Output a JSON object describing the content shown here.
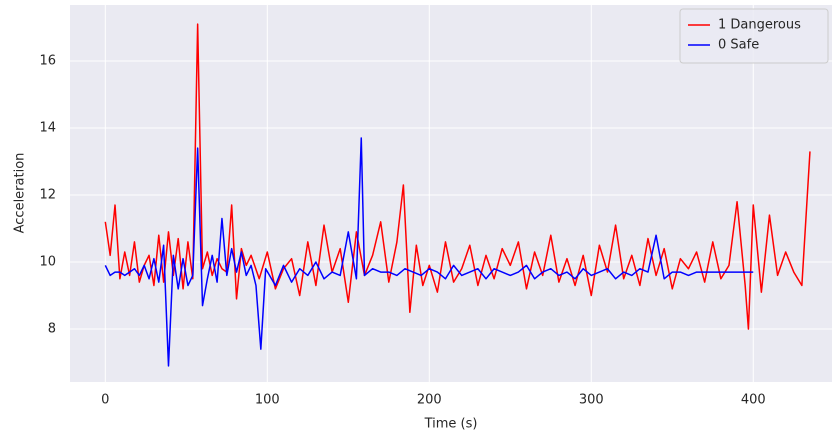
{
  "chart_data": {
    "type": "line",
    "x_label": "Time (s)",
    "y_label": "Acceleration",
    "xlim": [
      -21.8,
      448.6
    ],
    "ylim": [
      6.42,
      17.67
    ],
    "xticks": [
      0,
      100,
      200,
      300,
      400
    ],
    "yticks": [
      8,
      10,
      12,
      14,
      16
    ],
    "grid": true,
    "legend": "upper right",
    "series": [
      {
        "name": "1 Dangerous",
        "color": "#ff0000",
        "x": [
          0,
          3,
          6,
          9,
          12,
          15,
          18,
          21,
          24,
          27,
          30,
          33,
          36,
          39,
          42,
          45,
          48,
          51,
          54,
          57,
          60,
          63,
          66,
          69,
          72,
          75,
          78,
          81,
          84,
          87,
          90,
          95,
          100,
          105,
          110,
          115,
          120,
          125,
          130,
          135,
          140,
          145,
          150,
          155,
          160,
          165,
          170,
          175,
          180,
          184,
          188,
          192,
          196,
          200,
          205,
          210,
          215,
          220,
          225,
          230,
          235,
          240,
          245,
          250,
          255,
          260,
          265,
          270,
          275,
          280,
          285,
          290,
          295,
          300,
          305,
          310,
          315,
          320,
          325,
          330,
          335,
          340,
          345,
          350,
          355,
          360,
          365,
          370,
          375,
          380,
          385,
          390,
          395,
          397,
          400,
          405,
          410,
          415,
          420,
          425,
          430,
          435
        ],
        "values": [
          11.2,
          10.2,
          11.7,
          9.5,
          10.3,
          9.6,
          10.6,
          9.4,
          9.9,
          10.2,
          9.3,
          10.8,
          9.4,
          10.9,
          9.6,
          10.7,
          9.2,
          10.6,
          9.5,
          17.1,
          9.8,
          10.3,
          9.6,
          10.1,
          9.8,
          9.7,
          11.7,
          8.9,
          10.4,
          9.9,
          10.2,
          9.5,
          10.3,
          9.2,
          9.8,
          10.1,
          9.0,
          10.6,
          9.3,
          11.1,
          9.7,
          10.4,
          8.8,
          10.9,
          9.6,
          10.2,
          11.2,
          9.4,
          10.6,
          12.3,
          8.5,
          10.5,
          9.3,
          9.9,
          9.1,
          10.6,
          9.4,
          9.8,
          10.5,
          9.3,
          10.2,
          9.5,
          10.4,
          9.9,
          10.6,
          9.2,
          10.3,
          9.6,
          10.8,
          9.4,
          10.1,
          9.3,
          10.2,
          9.0,
          10.5,
          9.7,
          11.1,
          9.5,
          10.2,
          9.3,
          10.7,
          9.6,
          10.4,
          9.2,
          10.1,
          9.8,
          10.3,
          9.4,
          10.6,
          9.5,
          9.9,
          11.8,
          9.3,
          8.0,
          11.7,
          9.1,
          11.4,
          9.6,
          10.3,
          9.7,
          9.3,
          13.3
        ]
      },
      {
        "name": "0 Safe",
        "color": "#0000ff",
        "x": [
          0,
          3,
          6,
          9,
          12,
          15,
          18,
          21,
          24,
          27,
          30,
          33,
          36,
          39,
          42,
          45,
          48,
          51,
          54,
          57,
          60,
          63,
          66,
          69,
          72,
          75,
          78,
          81,
          84,
          87,
          90,
          93,
          96,
          99,
          105,
          110,
          115,
          120,
          125,
          130,
          135,
          140,
          145,
          150,
          155,
          158,
          160,
          165,
          170,
          175,
          180,
          185,
          190,
          195,
          200,
          205,
          210,
          215,
          220,
          225,
          230,
          235,
          240,
          245,
          250,
          255,
          260,
          265,
          270,
          275,
          280,
          285,
          290,
          295,
          300,
          305,
          310,
          315,
          320,
          325,
          330,
          335,
          340,
          345,
          350,
          355,
          360,
          365,
          370,
          375,
          380,
          385,
          390,
          395,
          400
        ],
        "values": [
          9.9,
          9.6,
          9.7,
          9.7,
          9.6,
          9.7,
          9.8,
          9.6,
          9.9,
          9.5,
          10.1,
          9.4,
          10.5,
          6.9,
          10.2,
          9.2,
          10.1,
          9.3,
          9.6,
          13.4,
          8.7,
          9.5,
          10.2,
          9.4,
          11.3,
          9.6,
          10.4,
          9.7,
          10.3,
          9.6,
          9.9,
          9.3,
          7.4,
          9.8,
          9.3,
          9.9,
          9.4,
          9.8,
          9.6,
          10.0,
          9.5,
          9.7,
          9.6,
          10.9,
          9.5,
          13.7,
          9.6,
          9.8,
          9.7,
          9.7,
          9.6,
          9.8,
          9.7,
          9.6,
          9.8,
          9.7,
          9.5,
          9.9,
          9.6,
          9.7,
          9.8,
          9.5,
          9.8,
          9.7,
          9.6,
          9.7,
          9.9,
          9.5,
          9.7,
          9.8,
          9.6,
          9.7,
          9.5,
          9.8,
          9.6,
          9.7,
          9.8,
          9.5,
          9.7,
          9.6,
          9.8,
          9.7,
          10.8,
          9.5,
          9.7,
          9.7,
          9.6,
          9.7,
          9.7,
          9.7,
          9.7,
          9.7,
          9.7,
          9.7,
          9.7
        ]
      }
    ]
  }
}
